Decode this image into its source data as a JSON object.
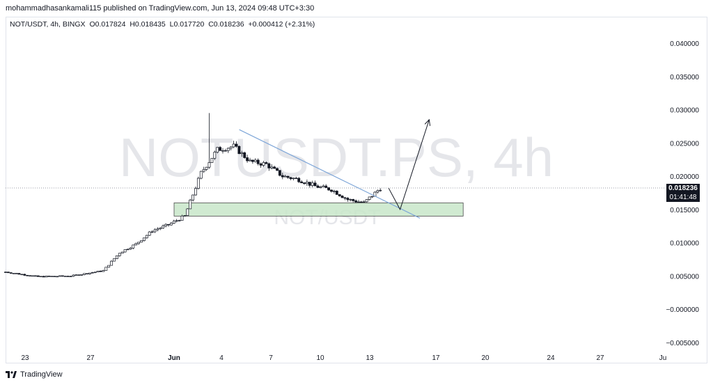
{
  "publisher": "mohammadhasankamali115 published on TradingView.com, Jun 13, 2024 09:48 UTC+3:30",
  "symbol_line": {
    "title": "NOT/USDT, 4h, BINGX",
    "open": "O0.017824",
    "high": "H0.018435",
    "low": "L0.017720",
    "close": "C0.018236",
    "change": "+0.000412 (+2.31%)"
  },
  "watermark": {
    "main": "NOTUSDT.PS, 4h",
    "sub": "NOT/USDT"
  },
  "price_tag": {
    "price": "0.018236",
    "countdown": "01:41:48"
  },
  "footer": {
    "brand": "TradingView"
  },
  "colors": {
    "candle": "#131722",
    "trendline": "#7ea6d8",
    "zone_fill": "#c8e6c9",
    "zone_border": "#4a4a4a",
    "price_line": "#787b86",
    "price_tag_bg": "#131722"
  },
  "chart_data": {
    "type": "candlestick",
    "y_ticks": [
      "0.040000",
      "0.035000",
      "0.030000",
      "0.025000",
      "0.020000",
      "0.015000",
      "0.010000",
      "0.005000",
      "−0.000000",
      "−0.005000"
    ],
    "ylim": [
      -0.005,
      0.04
    ],
    "x_ticks": [
      "23",
      "27",
      "Jun",
      "4",
      "7",
      "10",
      "13",
      "17",
      "20",
      "24",
      "27",
      "Ju"
    ],
    "current_price": 0.018236,
    "price_path": [
      [
        "May 21",
        0.0056
      ],
      [
        "May 23",
        0.0049
      ],
      [
        "May 25",
        0.005
      ],
      [
        "May 26",
        0.0054
      ],
      [
        "May 27",
        0.0058
      ],
      [
        "May 28",
        0.0085
      ],
      [
        "May 29",
        0.0098
      ],
      [
        "May 30",
        0.0118
      ],
      [
        "May 31",
        0.0127
      ],
      [
        "Jun 1",
        0.014
      ],
      [
        "Jun 2",
        0.0205
      ],
      [
        "Jun 3",
        0.024
      ],
      [
        "Jun 4",
        0.0245
      ],
      [
        "Jun 5",
        0.0222
      ],
      [
        "Jun 6",
        0.0218
      ],
      [
        "Jun 7",
        0.02
      ],
      [
        "Jun 8",
        0.0195
      ],
      [
        "Jun 9",
        0.0185
      ],
      [
        "Jun 10",
        0.018
      ],
      [
        "Jun 11",
        0.0165
      ],
      [
        "Jun 12",
        0.016
      ],
      [
        "Jun 13",
        0.0182
      ]
    ],
    "extremes": {
      "high": 0.0295,
      "spike_date": "Jun 2"
    },
    "drawings": {
      "trendline": {
        "from": [
          "Jun 4",
          0.027
        ],
        "to": [
          "Jun 15",
          0.0137
        ]
      },
      "support_zone": {
        "from": "May 31",
        "to": "Jun 18",
        "price_range": [
          0.014,
          0.016
        ]
      },
      "projection": [
        [
          "Jun 13",
          0.0182
        ],
        [
          "Jun 14",
          0.015
        ],
        [
          "Jun 16",
          0.0285
        ]
      ]
    }
  }
}
